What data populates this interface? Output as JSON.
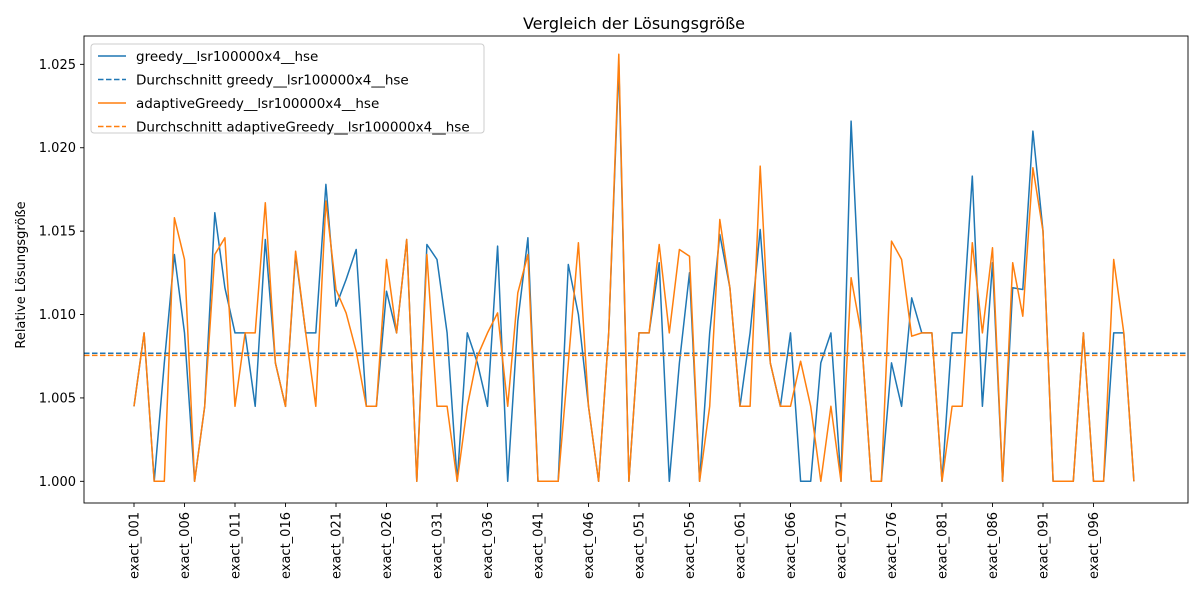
{
  "chart_data": {
    "type": "line",
    "title": "Vergleich der Lösungsgröße",
    "xlabel": "",
    "ylabel": "Relative Lösungsgröße",
    "ylim": [
      0.9987,
      1.0267
    ],
    "yticks": [
      1.0,
      1.005,
      1.01,
      1.015,
      1.02,
      1.025
    ],
    "ytick_labels": [
      "1.000",
      "1.005",
      "1.010",
      "1.015",
      "1.020",
      "1.025"
    ],
    "xtick_labels": [
      "exact_001",
      "exact_006",
      "exact_011",
      "exact_016",
      "exact_021",
      "exact_026",
      "exact_031",
      "exact_036",
      "exact_041",
      "exact_046",
      "exact_051",
      "exact_056",
      "exact_061",
      "exact_066",
      "exact_071",
      "exact_076",
      "exact_081",
      "exact_086",
      "exact_091",
      "exact_096"
    ],
    "xtick_step": 5,
    "legend_position": "top-left",
    "grid": false,
    "series": [
      {
        "name": "greedy__lsr100000x4__hse",
        "color": "#1f77b4",
        "style": "solid",
        "values": [
          1.0045,
          1.0089,
          1.0,
          1.0071,
          1.0136,
          1.0089,
          1.0,
          1.0045,
          1.0161,
          1.0116,
          1.0089,
          1.0089,
          1.0045,
          1.0145,
          1.0071,
          1.0045,
          1.0136,
          1.0089,
          1.0089,
          1.0178,
          1.0105,
          1.0121,
          1.0139,
          1.0045,
          1.0045,
          1.0114,
          1.0089,
          1.0145,
          1.0,
          1.0142,
          1.0133,
          1.0089,
          1.0,
          1.0089,
          1.0071,
          1.0045,
          1.0141,
          1.0,
          1.0096,
          1.0146,
          1.0,
          1.0,
          1.0,
          1.013,
          1.01,
          1.0045,
          1.0,
          1.0089,
          1.025,
          1.0,
          1.0089,
          1.0089,
          1.0131,
          1.0,
          1.0071,
          1.0125,
          1.0,
          1.0089,
          1.0148,
          1.0116,
          1.0045,
          1.0089,
          1.0151,
          1.0071,
          1.0045,
          1.0089,
          1.0,
          1.0,
          1.0071,
          1.0089,
          1.0,
          1.0216,
          1.0089,
          1.0,
          1.0,
          1.0071,
          1.0045,
          1.011,
          1.0089,
          1.0089,
          1.0,
          1.0089,
          1.0089,
          1.0183,
          1.0045,
          1.0131,
          1.0,
          1.0116,
          1.0115,
          1.021,
          1.015,
          1.0,
          1.0,
          1.0,
          1.0089,
          1.0,
          1.0,
          1.0089,
          1.0089,
          1.0
        ]
      },
      {
        "name": "Durchschnitt greedy__lsr100000x4__hse",
        "color": "#1f77b4",
        "style": "dashed",
        "constant": 1.00768
      },
      {
        "name": "adaptiveGreedy__lsr100000x4__hse",
        "color": "#ff7f0e",
        "style": "solid",
        "values": [
          1.0045,
          1.0089,
          1.0,
          1.0,
          1.0158,
          1.0133,
          1.0,
          1.0045,
          1.0136,
          1.0146,
          1.0045,
          1.0089,
          1.0089,
          1.0167,
          1.0071,
          1.0045,
          1.0138,
          1.0089,
          1.0045,
          1.0168,
          1.0115,
          1.0101,
          1.0078,
          1.0045,
          1.0045,
          1.0133,
          1.0089,
          1.0145,
          1.0,
          1.0136,
          1.0045,
          1.0045,
          1.0,
          1.0045,
          1.0075,
          1.0089,
          1.0101,
          1.0045,
          1.0113,
          1.0136,
          1.0,
          1.0,
          1.0,
          1.0071,
          1.0143,
          1.0045,
          1.0,
          1.0089,
          1.0256,
          1.0,
          1.0089,
          1.0089,
          1.0142,
          1.0089,
          1.0139,
          1.0135,
          1.0,
          1.0045,
          1.0157,
          1.0116,
          1.0045,
          1.0045,
          1.0189,
          1.0071,
          1.0045,
          1.0045,
          1.0072,
          1.0045,
          1.0,
          1.0045,
          1.0,
          1.0122,
          1.0089,
          1.0,
          1.0,
          1.0144,
          1.0133,
          1.0087,
          1.0089,
          1.0089,
          1.0,
          1.0045,
          1.0045,
          1.0143,
          1.0089,
          1.014,
          1.0,
          1.0131,
          1.0099,
          1.0188,
          1.015,
          1.0,
          1.0,
          1.0,
          1.0089,
          1.0,
          1.0,
          1.0133,
          1.0089,
          1.0
        ]
      },
      {
        "name": "Durchschnitt adaptiveGreedy__lsr100000x4__hse",
        "color": "#ff7f0e",
        "style": "dashed",
        "constant": 1.00755
      }
    ]
  }
}
